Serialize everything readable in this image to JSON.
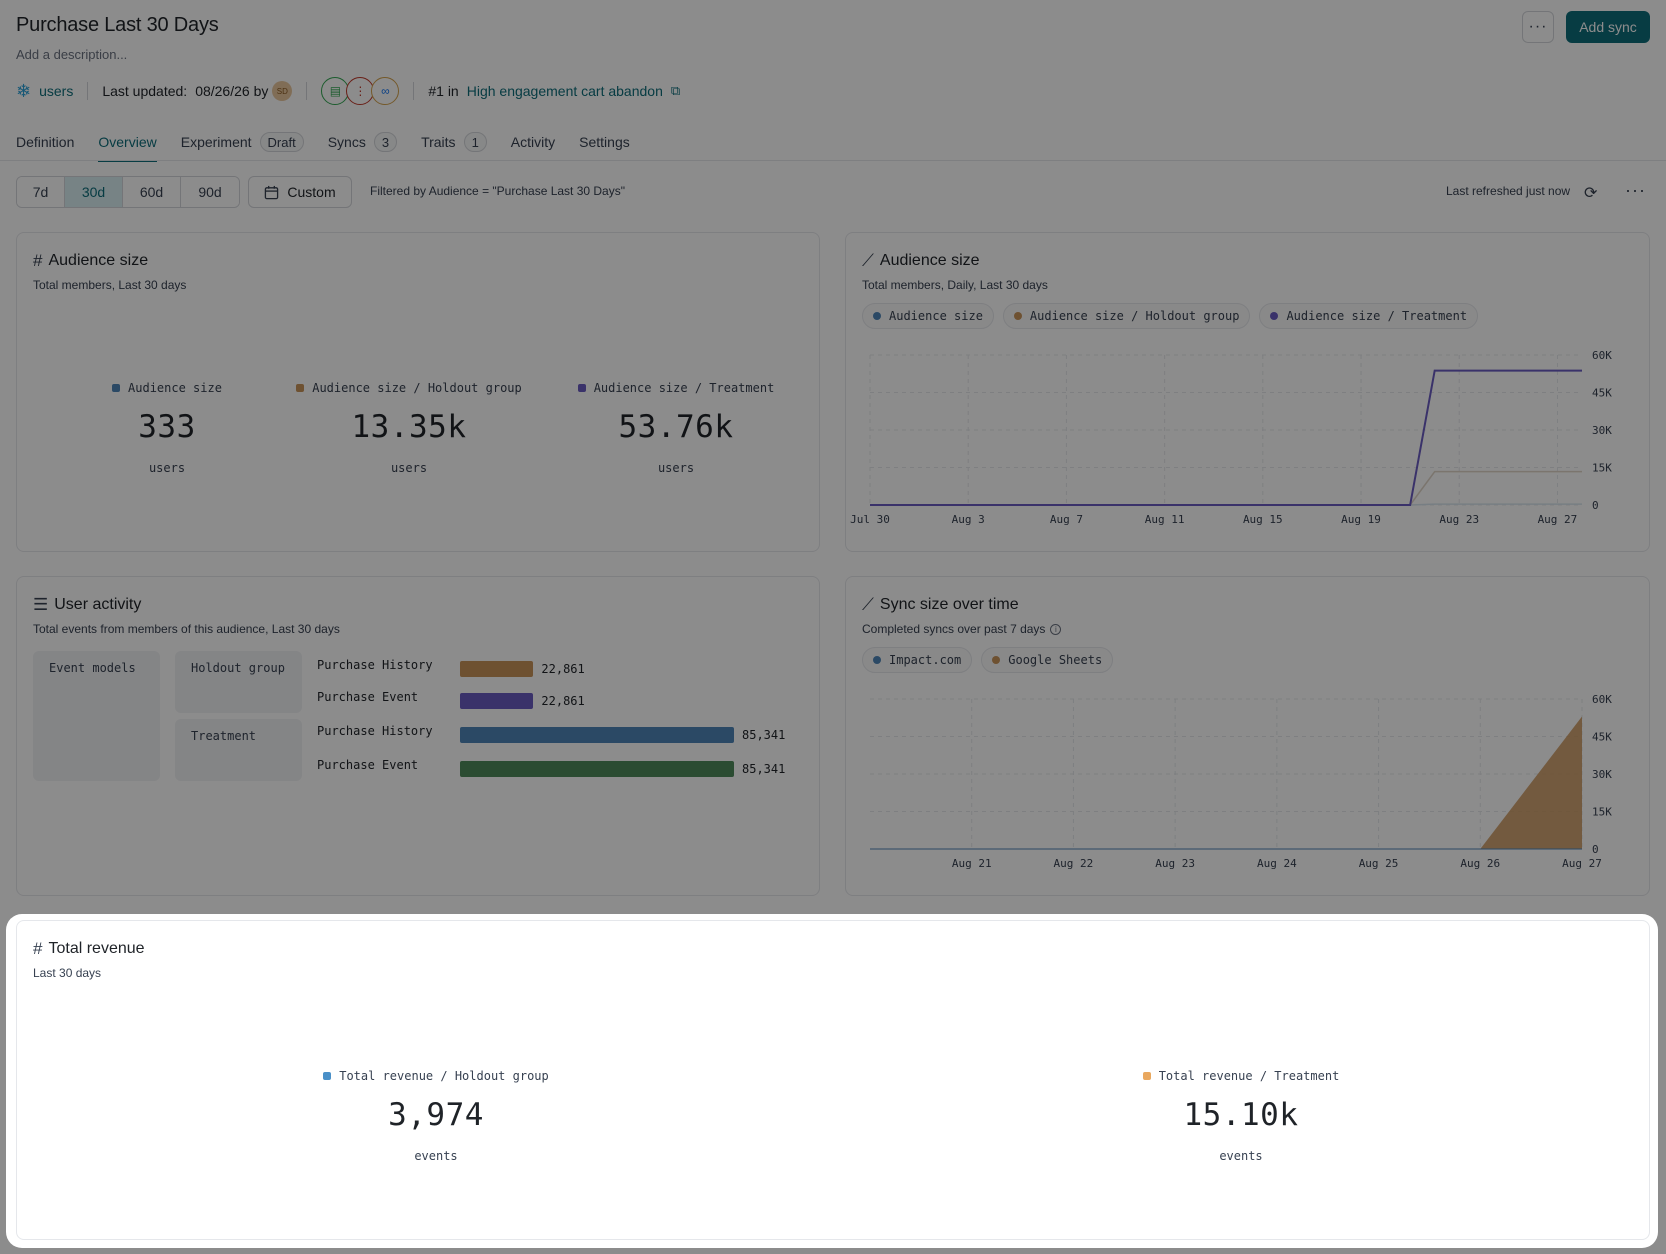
{
  "header": {
    "title": "Purchase Last 30 Days",
    "description": "Add a description...",
    "more_label": "···",
    "add_sync_label": "Add sync"
  },
  "meta": {
    "source_label": "users",
    "last_updated_label": "Last updated:",
    "last_updated_value": "08/26/26 by",
    "avatar_initials": "SD",
    "rank_prefix": "#1 in",
    "rank_link": "High engagement cart abandon"
  },
  "tabs": [
    {
      "label": "Definition"
    },
    {
      "label": "Overview"
    },
    {
      "label": "Experiment",
      "badge": "Draft"
    },
    {
      "label": "Syncs",
      "badge": "3"
    },
    {
      "label": "Traits",
      "badge": "1"
    },
    {
      "label": "Activity"
    },
    {
      "label": "Settings"
    }
  ],
  "toolbar": {
    "ranges": [
      "7d",
      "30d",
      "60d",
      "90d"
    ],
    "selected_range": "30d",
    "custom_label": "Custom",
    "filter_text": "Filtered by Audience = \"Purchase Last 30 Days\"",
    "refreshed_text": "Last refreshed just now"
  },
  "colors": {
    "accent": "#0e6d7a",
    "blue": "#4f86b8",
    "tan": "#c9945a",
    "purple": "#6a5bc2",
    "green": "#4f8a5b",
    "lightblue": "#4a90c8",
    "peach": "#e9a85f"
  },
  "audience_size_card": {
    "title": "Audience size",
    "subtitle": "Total members, Last 30 days",
    "metrics": [
      {
        "label": "Audience size",
        "value": "333",
        "unit": "users",
        "color": "#4f86b8"
      },
      {
        "label": "Audience size / Holdout group",
        "value": "13.35k",
        "unit": "users",
        "color": "#c9945a"
      },
      {
        "label": "Audience size / Treatment",
        "value": "53.76k",
        "unit": "users",
        "color": "#6a5bc2"
      }
    ]
  },
  "audience_chart_card": {
    "title": "Audience size",
    "subtitle": "Total members, Daily, Last 30 days",
    "legend": [
      {
        "label": "Audience size",
        "color": "#4f86b8"
      },
      {
        "label": "Audience size / Holdout group",
        "color": "#c9945a"
      },
      {
        "label": "Audience size / Treatment",
        "color": "#6a5bc2"
      }
    ]
  },
  "user_activity_card": {
    "title": "User activity",
    "subtitle": "Total events from members of this audience, Last 30 days",
    "event_models_label": "Event models",
    "groups": [
      {
        "label": "Holdout group"
      },
      {
        "label": "Treatment"
      }
    ],
    "rows": [
      {
        "label": "Purchase History",
        "value": 22861,
        "display": "22,861",
        "color": "#c9945a"
      },
      {
        "label": "Purchase Event",
        "value": 22861,
        "display": "22,861",
        "color": "#6a5bc2"
      },
      {
        "label": "Purchase History",
        "value": 85341,
        "display": "85,341",
        "color": "#4f86b8"
      },
      {
        "label": "Purchase Event",
        "value": 85341,
        "display": "85,341",
        "color": "#4f8a5b"
      }
    ]
  },
  "sync_card": {
    "title": "Sync size over time",
    "subtitle": "Completed syncs over past 7 days",
    "legend": [
      {
        "label": "Impact.com",
        "color": "#4f86b8"
      },
      {
        "label": "Google Sheets",
        "color": "#c9945a"
      }
    ]
  },
  "revenue_card": {
    "title": "Total revenue",
    "subtitle": "Last 30 days",
    "metrics": [
      {
        "label": "Total revenue / Holdout group",
        "value": "3,974",
        "unit": "events",
        "color": "#4a90c8"
      },
      {
        "label": "Total revenue / Treatment",
        "value": "15.10k",
        "unit": "events",
        "color": "#e9a85f"
      }
    ]
  },
  "chart_data": [
    {
      "type": "line",
      "title": "Audience size",
      "x": [
        "Jul 30",
        "Jul 31",
        "Aug 1",
        "Aug 2",
        "Aug 3",
        "Aug 4",
        "Aug 5",
        "Aug 6",
        "Aug 7",
        "Aug 8",
        "Aug 9",
        "Aug 10",
        "Aug 11",
        "Aug 12",
        "Aug 13",
        "Aug 14",
        "Aug 15",
        "Aug 16",
        "Aug 17",
        "Aug 18",
        "Aug 19",
        "Aug 20",
        "Aug 21",
        "Aug 22",
        "Aug 23",
        "Aug 24",
        "Aug 25",
        "Aug 26",
        "Aug 27",
        "Aug 28"
      ],
      "x_ticks": [
        "Jul 30",
        "Aug 3",
        "Aug 7",
        "Aug 11",
        "Aug 15",
        "Aug 19",
        "Aug 23",
        "Aug 27"
      ],
      "y_ticks": [
        "0",
        "15K",
        "30K",
        "45K",
        "60K"
      ],
      "ylim": [
        0,
        60000
      ],
      "grid": true,
      "series": [
        {
          "name": "Audience size",
          "values": [
            0,
            0,
            0,
            0,
            0,
            0,
            0,
            0,
            0,
            0,
            0,
            0,
            0,
            0,
            0,
            0,
            0,
            0,
            0,
            0,
            0,
            0,
            0,
            333,
            333,
            333,
            333,
            333,
            333,
            333
          ]
        },
        {
          "name": "Audience size / Holdout group",
          "values": [
            0,
            0,
            0,
            0,
            0,
            0,
            0,
            0,
            0,
            0,
            0,
            0,
            0,
            0,
            0,
            0,
            0,
            0,
            0,
            0,
            0,
            0,
            0,
            13350,
            13350,
            13350,
            13350,
            13350,
            13350,
            13350
          ]
        },
        {
          "name": "Audience size / Treatment",
          "values": [
            0,
            0,
            0,
            0,
            0,
            0,
            0,
            0,
            0,
            0,
            0,
            0,
            0,
            0,
            0,
            0,
            0,
            0,
            0,
            0,
            0,
            0,
            0,
            53760,
            53760,
            53760,
            53760,
            53760,
            53760,
            53760
          ]
        }
      ]
    },
    {
      "type": "bar",
      "title": "User activity",
      "categories": [
        "Purchase History",
        "Purchase Event",
        "Purchase History",
        "Purchase Event"
      ],
      "series": [
        {
          "name": "Holdout group",
          "values": [
            22861,
            22861,
            null,
            null
          ]
        },
        {
          "name": "Treatment",
          "values": [
            null,
            null,
            85341,
            85341
          ]
        }
      ]
    },
    {
      "type": "area",
      "title": "Sync size over time",
      "x": [
        "Aug 20",
        "Aug 21",
        "Aug 22",
        "Aug 23",
        "Aug 24",
        "Aug 25",
        "Aug 26",
        "Aug 27"
      ],
      "x_ticks": [
        "Aug 21",
        "Aug 22",
        "Aug 23",
        "Aug 24",
        "Aug 25",
        "Aug 26",
        "Aug 27"
      ],
      "y_ticks": [
        "0",
        "15K",
        "30K",
        "45K",
        "60K"
      ],
      "ylim": [
        0,
        60000
      ],
      "grid": true,
      "series": [
        {
          "name": "Impact.com",
          "values": [
            0,
            0,
            0,
            0,
            0,
            0,
            0,
            0
          ]
        },
        {
          "name": "Google Sheets",
          "values": [
            0,
            0,
            0,
            0,
            0,
            0,
            0,
            53000
          ]
        }
      ]
    }
  ]
}
